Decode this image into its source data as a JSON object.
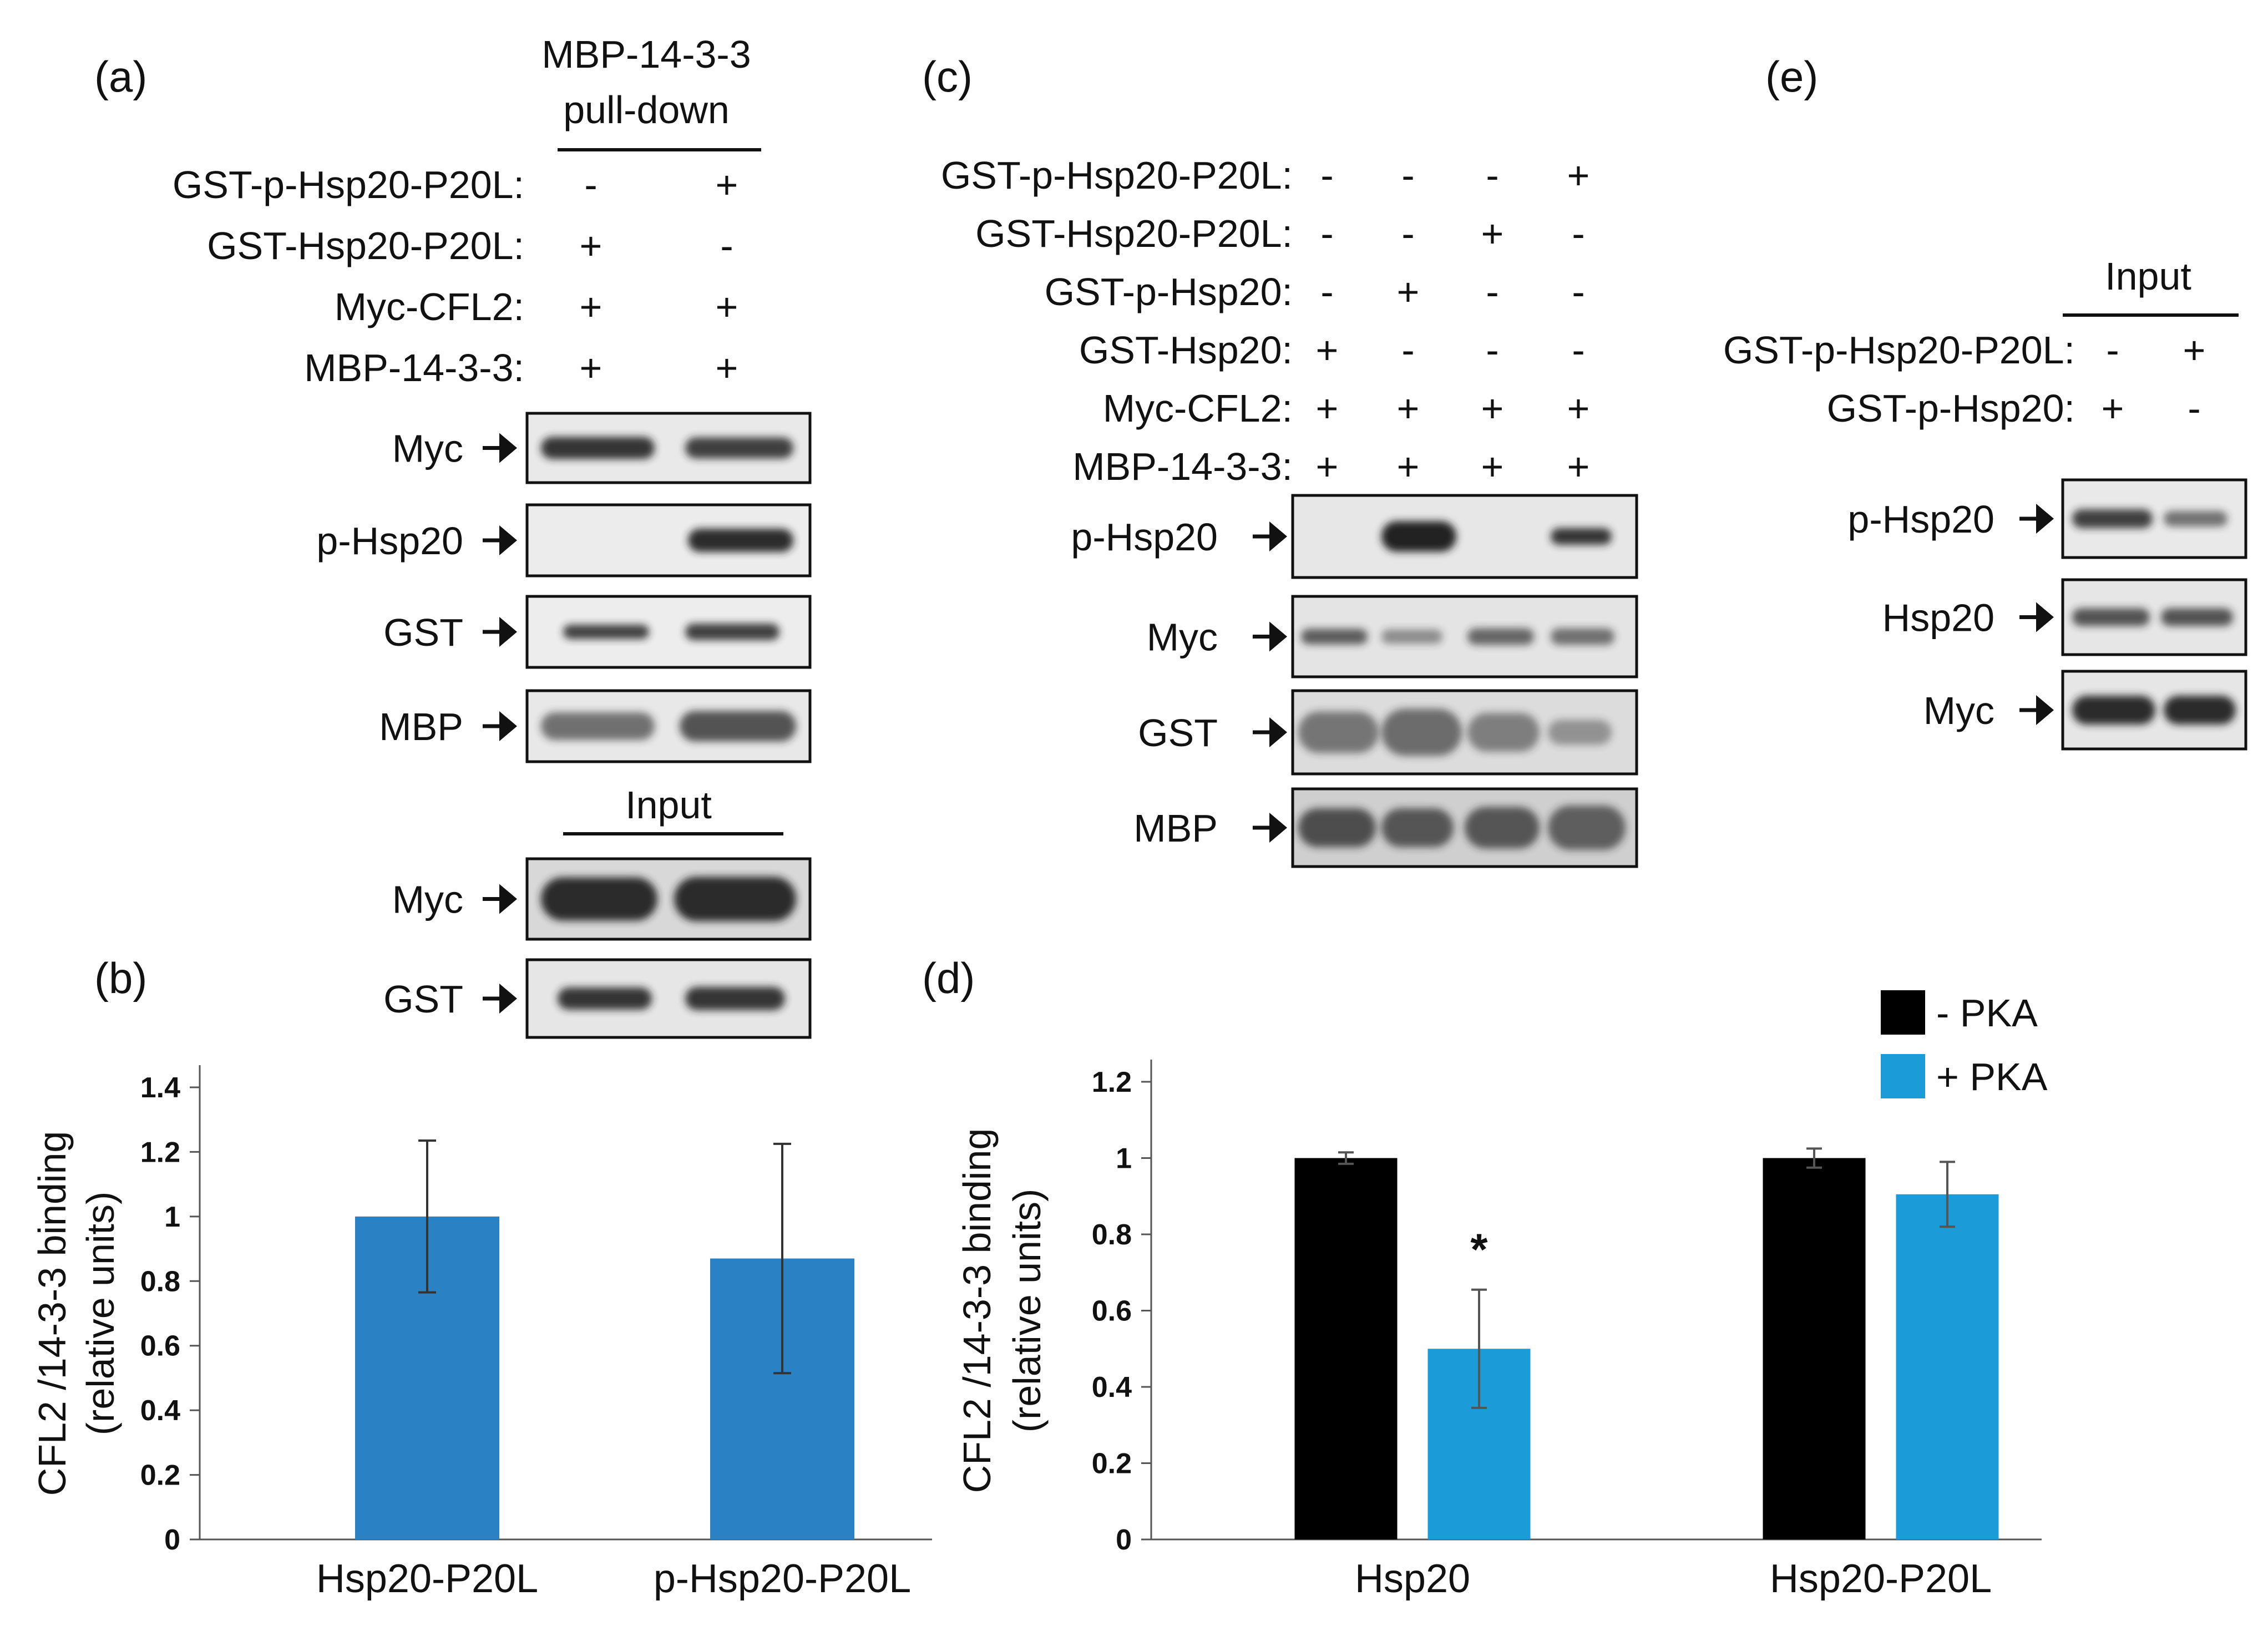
{
  "panel_a": {
    "label": "(a)",
    "header_line1": "MBP-14-3-3",
    "header_line2": "pull-down",
    "rows": [
      {
        "name": "GST-p-Hsp20-P20L:",
        "signs": [
          "-",
          "+"
        ]
      },
      {
        "name": "GST-Hsp20-P20L:",
        "signs": [
          "+",
          "-"
        ]
      },
      {
        "name": "Myc-CFL2:",
        "signs": [
          "+",
          "+"
        ]
      },
      {
        "name": "MBP-14-3-3:",
        "signs": [
          "+",
          "+"
        ]
      }
    ],
    "blots": [
      "Myc",
      "p-Hsp20",
      "GST",
      "MBP"
    ],
    "input_label": "Input",
    "input_blots": [
      "Myc",
      "GST"
    ]
  },
  "panel_c": {
    "label": "(c)",
    "rows": [
      {
        "name": "GST-p-Hsp20-P20L:",
        "signs": [
          "-",
          "-",
          "-",
          "+"
        ]
      },
      {
        "name": "GST-Hsp20-P20L:",
        "signs": [
          "-",
          "-",
          "+",
          "-"
        ]
      },
      {
        "name": "GST-p-Hsp20:",
        "signs": [
          "-",
          "+",
          "-",
          "-"
        ]
      },
      {
        "name": "GST-Hsp20:",
        "signs": [
          "+",
          "-",
          "-",
          "-"
        ]
      },
      {
        "name": "Myc-CFL2:",
        "signs": [
          "+",
          "+",
          "+",
          "+"
        ]
      },
      {
        "name": "MBP-14-3-3:",
        "signs": [
          "+",
          "+",
          "+",
          "+"
        ]
      }
    ],
    "blots": [
      "p-Hsp20",
      "Myc",
      "GST",
      "MBP"
    ]
  },
  "panel_e": {
    "label": "(e)",
    "input_label": "Input",
    "rows": [
      {
        "name": "GST-p-Hsp20-P20L:",
        "signs": [
          "-",
          "+"
        ]
      },
      {
        "name": "GST-p-Hsp20:",
        "signs": [
          "+",
          "-"
        ]
      }
    ],
    "blots": [
      "p-Hsp20",
      "Hsp20",
      "Myc"
    ]
  },
  "colors": {
    "bar_b": "#2a82c4",
    "minus_pka": "#000000",
    "plus_pka": "#1b9bd8"
  },
  "chart_data": [
    {
      "panel": "(b)",
      "type": "bar",
      "categories": [
        "Hsp20-P20L",
        "p-Hsp20-P20L"
      ],
      "values": [
        1.0,
        0.87
      ],
      "errors": [
        0.235,
        0.355
      ],
      "ylabel_line1": "CFL2 /14-3-3 binding",
      "ylabel_line2": "(relative units)",
      "ylim": [
        0,
        1.4
      ],
      "yticks": [
        "0",
        "0.2",
        "0.4",
        "0.6",
        "0.8",
        "1",
        "1.2",
        "1.4"
      ],
      "grid": false
    },
    {
      "panel": "(d)",
      "type": "bar",
      "categories": [
        "Hsp20",
        "Hsp20-P20L"
      ],
      "series": [
        {
          "name": "- PKA",
          "values": [
            1.0,
            1.0
          ],
          "errors": [
            0.015,
            0.025
          ]
        },
        {
          "name": "+ PKA",
          "values": [
            0.5,
            0.905
          ],
          "errors": [
            0.155,
            0.085
          ]
        }
      ],
      "annotation": "*",
      "ylabel_line1": "CFL2 /14-3-3 binding",
      "ylabel_line2": "(relative units)",
      "ylim": [
        0,
        1.2
      ],
      "yticks": [
        "0",
        "0.2",
        "0.4",
        "0.6",
        "0.8",
        "1",
        "1.2"
      ],
      "legend": "top-right",
      "grid": false
    }
  ]
}
